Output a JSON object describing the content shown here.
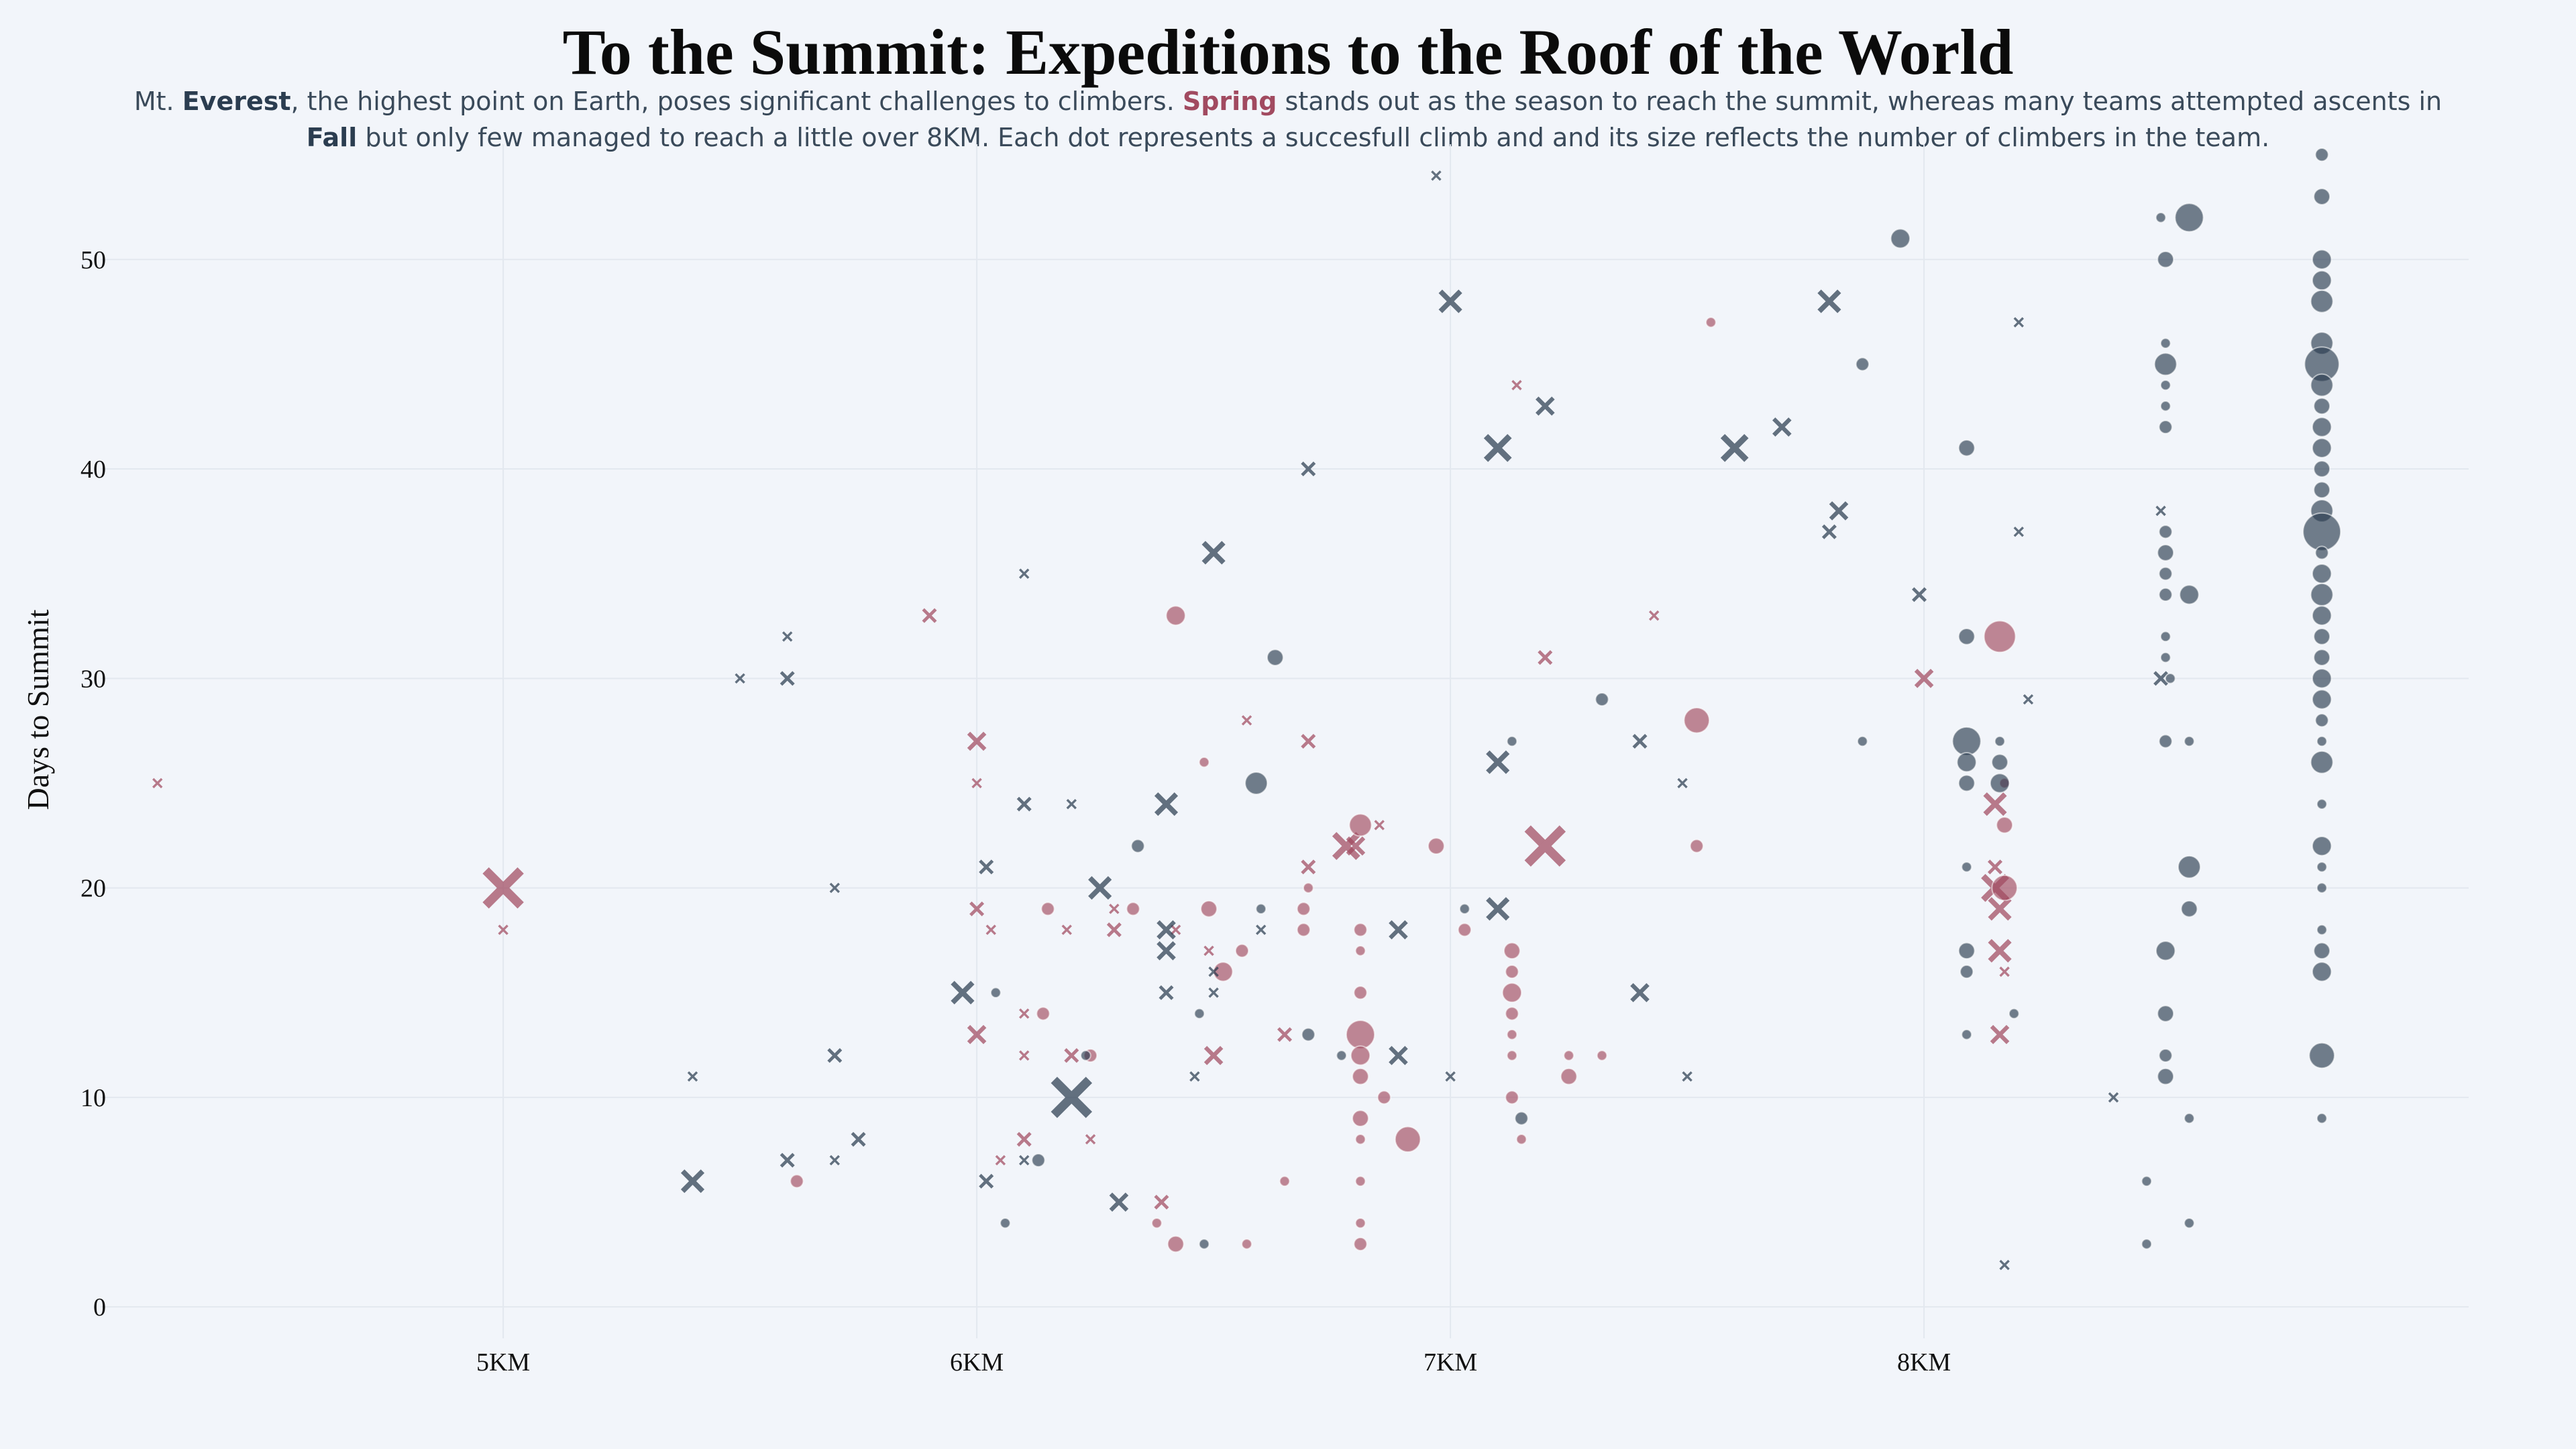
{
  "title": "To the Summit: Expeditions to the Roof of the World",
  "subtitle": {
    "p1": "Mt. ",
    "b1": "Everest",
    "p2": ", the highest point on Earth, poses significant challenges to climbers. ",
    "b2": "Spring",
    "p3": " stands out as the season to reach the summit, whereas many teams attempted ascents in",
    "b3": "Fall",
    "p4": " but only few managed to reach a little over 8KM. Each dot represents a succesfull climb and and its size reflects the number of climbers in the team."
  },
  "colors": {
    "spring": "#a14a60",
    "fall": "#2b3d50",
    "background": "#f2f5fa",
    "grid": "#e3e8ef"
  },
  "chart_data": {
    "type": "scatter",
    "title": "To the Summit: Expeditions to the Roof of the World",
    "ylabel": "Days to Summit",
    "xlabel": "",
    "xlim": [
      4150,
      9150
    ],
    "ylim": [
      -1.5,
      55.5
    ],
    "x_ticks": [
      5000,
      6000,
      7000,
      8000
    ],
    "x_tick_labels": [
      "5KM",
      "6KM",
      "7KM",
      "8KM"
    ],
    "y_ticks": [
      0,
      10,
      20,
      30,
      40,
      50
    ],
    "y_tick_labels": [
      "0",
      "10",
      "20",
      "30",
      "40",
      "50"
    ],
    "grid": true,
    "legend": "none",
    "size_meaning": "number of climbers in the team",
    "marker_meaning": "circle = reached summit, cross = did not reach summit",
    "series": [
      {
        "name": "Spring",
        "circles": [
          [
            5620,
            6,
            2
          ],
          [
            6150,
            19,
            2
          ],
          [
            6140,
            14,
            2
          ],
          [
            6240,
            12,
            2
          ],
          [
            6330,
            19,
            2
          ],
          [
            6420,
            33,
            4
          ],
          [
            6480,
            26,
            1
          ],
          [
            6490,
            19,
            3
          ],
          [
            6520,
            16,
            4
          ],
          [
            6560,
            17,
            2
          ],
          [
            6570,
            3,
            1
          ],
          [
            6420,
            3,
            3
          ],
          [
            6380,
            4,
            1
          ],
          [
            6650,
            6,
            1
          ],
          [
            6690,
            19,
            2
          ],
          [
            6700,
            20,
            1
          ],
          [
            6690,
            18,
            2
          ],
          [
            6810,
            23,
            5
          ],
          [
            6810,
            18,
            2
          ],
          [
            6810,
            17,
            1
          ],
          [
            6810,
            15,
            2
          ],
          [
            6810,
            13,
            7
          ],
          [
            6810,
            12,
            4
          ],
          [
            6810,
            11,
            3
          ],
          [
            6810,
            9,
            3
          ],
          [
            6810,
            8,
            1
          ],
          [
            6810,
            6,
            1
          ],
          [
            6810,
            4,
            1
          ],
          [
            6810,
            3,
            2
          ],
          [
            6860,
            10,
            2
          ],
          [
            6910,
            8,
            6
          ],
          [
            6970,
            22,
            3
          ],
          [
            7030,
            18,
            2
          ],
          [
            7130,
            17,
            3
          ],
          [
            7130,
            16,
            2
          ],
          [
            7130,
            15,
            4
          ],
          [
            7130,
            14,
            2
          ],
          [
            7130,
            13,
            1
          ],
          [
            7130,
            12,
            1
          ],
          [
            7130,
            10,
            2
          ],
          [
            7150,
            8,
            1
          ],
          [
            7250,
            12,
            1
          ],
          [
            7250,
            11,
            3
          ],
          [
            7320,
            12,
            1
          ],
          [
            7520,
            28,
            6
          ],
          [
            7520,
            22,
            2
          ],
          [
            7550,
            47,
            1
          ],
          [
            8160,
            32,
            8
          ],
          [
            8170,
            20,
            6
          ],
          [
            8170,
            23,
            3
          ],
          [
            8170,
            25,
            1
          ]
        ],
        "crosses": [
          [
            4270,
            25,
            1
          ],
          [
            5000,
            20,
            8
          ],
          [
            5000,
            18,
            1
          ],
          [
            5900,
            33,
            2
          ],
          [
            6000,
            27,
            3
          ],
          [
            6000,
            25,
            1
          ],
          [
            6000,
            19,
            2
          ],
          [
            6000,
            13,
            3
          ],
          [
            6030,
            18,
            1
          ],
          [
            6050,
            7,
            1
          ],
          [
            6100,
            12,
            1
          ],
          [
            6100,
            14,
            1
          ],
          [
            6100,
            8,
            2
          ],
          [
            6190,
            18,
            1
          ],
          [
            6200,
            12,
            2
          ],
          [
            6240,
            8,
            1
          ],
          [
            6290,
            19,
            1
          ],
          [
            6290,
            18,
            2
          ],
          [
            6390,
            5,
            2
          ],
          [
            6420,
            18,
            1
          ],
          [
            6490,
            17,
            1
          ],
          [
            6500,
            12,
            3
          ],
          [
            6570,
            28,
            1
          ],
          [
            6650,
            13,
            2
          ],
          [
            6700,
            27,
            2
          ],
          [
            6700,
            21,
            2
          ],
          [
            6780,
            22,
            5
          ],
          [
            6800,
            22,
            3
          ],
          [
            6850,
            23,
            1
          ],
          [
            7140,
            44,
            1
          ],
          [
            7200,
            31,
            2
          ],
          [
            7200,
            22,
            8
          ],
          [
            7430,
            33,
            1
          ],
          [
            8000,
            30,
            3
          ],
          [
            8150,
            24,
            4
          ],
          [
            8150,
            21,
            2
          ],
          [
            8150,
            20,
            5
          ],
          [
            8160,
            19,
            4
          ],
          [
            8160,
            17,
            4
          ],
          [
            8160,
            13,
            3
          ],
          [
            8170,
            16,
            1
          ]
        ]
      },
      {
        "name": "Fall",
        "circles": [
          [
            6040,
            15,
            1
          ],
          [
            6060,
            4,
            1
          ],
          [
            6130,
            7,
            2
          ],
          [
            6230,
            12,
            1
          ],
          [
            6340,
            22,
            2
          ],
          [
            6470,
            14,
            1
          ],
          [
            6480,
            3,
            1
          ],
          [
            6590,
            25,
            5
          ],
          [
            6600,
            19,
            1
          ],
          [
            6630,
            31,
            3
          ],
          [
            6700,
            13,
            2
          ],
          [
            6770,
            12,
            1
          ],
          [
            7030,
            19,
            1
          ],
          [
            7130,
            27,
            1
          ],
          [
            7150,
            9,
            2
          ],
          [
            7320,
            29,
            2
          ],
          [
            7870,
            45,
            2
          ],
          [
            7870,
            27,
            1
          ],
          [
            7950,
            51,
            4
          ],
          [
            8090,
            41,
            3
          ],
          [
            8090,
            32,
            3
          ],
          [
            8090,
            21,
            1
          ],
          [
            8090,
            17,
            3
          ],
          [
            8090,
            16,
            2
          ],
          [
            8090,
            13,
            1
          ],
          [
            8090,
            27,
            7
          ],
          [
            8090,
            26,
            4
          ],
          [
            8090,
            25,
            3
          ],
          [
            8160,
            27,
            1
          ],
          [
            8160,
            26,
            3
          ],
          [
            8160,
            25,
            4
          ],
          [
            8190,
            14,
            1
          ],
          [
            8500,
            52,
            1
          ],
          [
            8510,
            50,
            3
          ],
          [
            8510,
            46,
            1
          ],
          [
            8510,
            45,
            5
          ],
          [
            8510,
            44,
            1
          ],
          [
            8510,
            43,
            1
          ],
          [
            8510,
            42,
            2
          ],
          [
            8510,
            37,
            2
          ],
          [
            8510,
            36,
            3
          ],
          [
            8510,
            35,
            2
          ],
          [
            8510,
            34,
            2
          ],
          [
            8510,
            32,
            1
          ],
          [
            8510,
            31,
            1
          ],
          [
            8510,
            27,
            2
          ],
          [
            8510,
            17,
            4
          ],
          [
            8510,
            14,
            3
          ],
          [
            8510,
            12,
            2
          ],
          [
            8510,
            11,
            3
          ],
          [
            8470,
            6,
            1
          ],
          [
            8560,
            52,
            7
          ],
          [
            8560,
            34,
            4
          ],
          [
            8560,
            27,
            1
          ],
          [
            8560,
            21,
            5
          ],
          [
            8560,
            19,
            3
          ],
          [
            8560,
            9,
            1
          ],
          [
            8560,
            4,
            1
          ],
          [
            8470,
            3,
            1
          ],
          [
            8520,
            30,
            1
          ],
          [
            8840,
            55,
            2
          ],
          [
            8840,
            53,
            3
          ],
          [
            8840,
            50,
            4
          ],
          [
            8840,
            49,
            4
          ],
          [
            8840,
            48,
            5
          ],
          [
            8840,
            46,
            5
          ],
          [
            8840,
            45,
            9
          ],
          [
            8840,
            44,
            5
          ],
          [
            8840,
            43,
            3
          ],
          [
            8840,
            42,
            4
          ],
          [
            8840,
            41,
            4
          ],
          [
            8840,
            40,
            3
          ],
          [
            8840,
            39,
            3
          ],
          [
            8840,
            38,
            5
          ],
          [
            8840,
            37,
            10
          ],
          [
            8840,
            36,
            2
          ],
          [
            8840,
            35,
            4
          ],
          [
            8840,
            34,
            5
          ],
          [
            8840,
            33,
            4
          ],
          [
            8840,
            32,
            3
          ],
          [
            8840,
            31,
            3
          ],
          [
            8840,
            30,
            4
          ],
          [
            8840,
            29,
            4
          ],
          [
            8840,
            28,
            2
          ],
          [
            8840,
            27,
            1
          ],
          [
            8840,
            26,
            5
          ],
          [
            8840,
            24,
            1
          ],
          [
            8840,
            22,
            4
          ],
          [
            8840,
            21,
            1
          ],
          [
            8840,
            20,
            1
          ],
          [
            8840,
            18,
            1
          ],
          [
            8840,
            17,
            3
          ],
          [
            8840,
            16,
            4
          ],
          [
            8840,
            12,
            6
          ],
          [
            8840,
            9,
            1
          ]
        ],
        "crosses": [
          [
            5400,
            11,
            1
          ],
          [
            5400,
            6,
            4
          ],
          [
            5500,
            30,
            1
          ],
          [
            5600,
            32,
            1
          ],
          [
            5600,
            30,
            2
          ],
          [
            5600,
            7,
            2
          ],
          [
            5700,
            20,
            1
          ],
          [
            5700,
            12,
            2
          ],
          [
            5700,
            7,
            1
          ],
          [
            5750,
            8,
            2
          ],
          [
            5970,
            15,
            4
          ],
          [
            6020,
            21,
            2
          ],
          [
            6020,
            6,
            2
          ],
          [
            6100,
            35,
            1
          ],
          [
            6100,
            24,
            2
          ],
          [
            6100,
            7,
            1
          ],
          [
            6200,
            24,
            1
          ],
          [
            6200,
            10,
            8
          ],
          [
            6260,
            20,
            4
          ],
          [
            6300,
            5,
            3
          ],
          [
            6400,
            24,
            4
          ],
          [
            6400,
            18,
            3
          ],
          [
            6400,
            17,
            3
          ],
          [
            6400,
            15,
            2
          ],
          [
            6460,
            11,
            1
          ],
          [
            6500,
            36,
            4
          ],
          [
            6500,
            16,
            1
          ],
          [
            6500,
            15,
            1
          ],
          [
            6600,
            18,
            1
          ],
          [
            6700,
            40,
            2
          ],
          [
            6890,
            18,
            3
          ],
          [
            6890,
            12,
            3
          ],
          [
            6970,
            54,
            1
          ],
          [
            7000,
            48,
            4
          ],
          [
            7000,
            11,
            1
          ],
          [
            7100,
            41,
            5
          ],
          [
            7100,
            26,
            4
          ],
          [
            7100,
            19,
            4
          ],
          [
            7200,
            43,
            3
          ],
          [
            7400,
            27,
            2
          ],
          [
            7400,
            15,
            3
          ],
          [
            7490,
            25,
            1
          ],
          [
            7500,
            11,
            1
          ],
          [
            7600,
            41,
            5
          ],
          [
            7700,
            42,
            3
          ],
          [
            7800,
            48,
            4
          ],
          [
            7800,
            37,
            2
          ],
          [
            7820,
            38,
            3
          ],
          [
            7990,
            34,
            2
          ],
          [
            8200,
            47,
            1
          ],
          [
            8200,
            37,
            1
          ],
          [
            8220,
            29,
            1
          ],
          [
            8170,
            2,
            1
          ],
          [
            8400,
            10,
            1
          ],
          [
            8500,
            38,
            1
          ],
          [
            8500,
            30,
            2
          ]
        ]
      }
    ]
  }
}
